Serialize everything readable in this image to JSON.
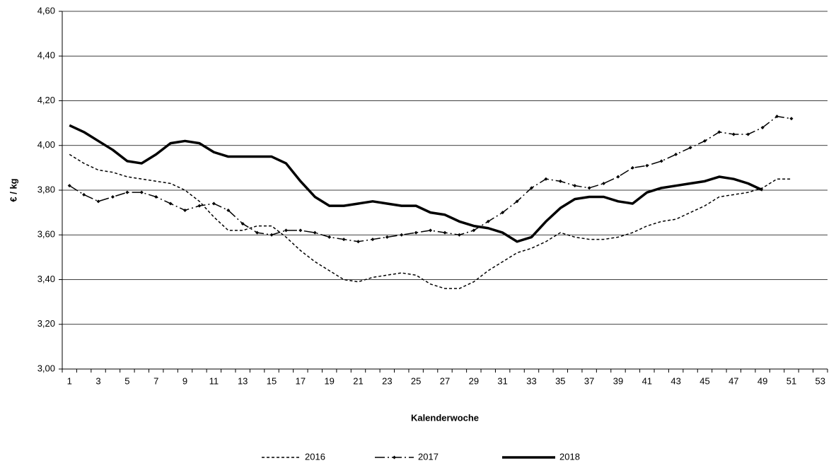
{
  "chart_data": {
    "type": "line",
    "x_label": "Kalenderwoche",
    "y_label": "€ / kg",
    "categories": [
      "1",
      null,
      "3",
      null,
      "5",
      null,
      "7",
      null,
      "9",
      null,
      "11",
      null,
      "13",
      null,
      "15",
      null,
      "17",
      null,
      "19",
      null,
      "21",
      null,
      "23",
      null,
      "25",
      null,
      "27",
      null,
      "29",
      null,
      "31",
      null,
      "33",
      null,
      "35",
      null,
      "37",
      null,
      "39",
      null,
      "41",
      null,
      "43",
      null,
      "45",
      null,
      "47",
      null,
      "49",
      null,
      "51",
      null,
      "53"
    ],
    "series": [
      {
        "name": "2016",
        "color": "#000000",
        "style": "dashed",
        "values": [
          3.96,
          3.92,
          3.89,
          3.88,
          3.86,
          3.85,
          3.84,
          3.83,
          3.8,
          3.75,
          3.68,
          3.62,
          3.62,
          3.64,
          3.64,
          3.59,
          3.53,
          3.48,
          3.44,
          3.4,
          3.39,
          3.41,
          3.42,
          3.43,
          3.42,
          3.38,
          3.36,
          3.36,
          3.39,
          3.44,
          3.48,
          3.52,
          3.54,
          3.57,
          3.61,
          3.59,
          3.58,
          3.58,
          3.59,
          3.61,
          3.64,
          3.66,
          3.67,
          3.7,
          3.73,
          3.77,
          3.78,
          3.79,
          3.81,
          3.85,
          3.85,
          null,
          null
        ]
      },
      {
        "name": "2017",
        "color": "#000000",
        "style": "dashdot",
        "values": [
          3.82,
          3.78,
          3.75,
          3.77,
          3.79,
          3.79,
          3.77,
          3.74,
          3.71,
          3.73,
          3.74,
          3.71,
          3.65,
          3.61,
          3.6,
          3.62,
          3.62,
          3.61,
          3.59,
          3.58,
          3.57,
          3.58,
          3.59,
          3.6,
          3.61,
          3.62,
          3.61,
          3.6,
          3.62,
          3.66,
          3.7,
          3.75,
          3.81,
          3.85,
          3.84,
          3.82,
          3.81,
          3.83,
          3.86,
          3.9,
          3.91,
          3.93,
          3.96,
          3.99,
          4.02,
          4.06,
          4.05,
          4.05,
          4.08,
          4.13,
          4.12,
          null,
          null
        ]
      },
      {
        "name": "2018",
        "color": "#000000",
        "style": "solid",
        "values": [
          4.09,
          4.06,
          4.02,
          3.98,
          3.93,
          3.92,
          3.96,
          4.01,
          4.02,
          4.01,
          3.97,
          3.95,
          3.95,
          3.95,
          3.95,
          3.92,
          3.84,
          3.77,
          3.73,
          3.73,
          3.74,
          3.75,
          3.74,
          3.73,
          3.73,
          3.7,
          3.69,
          3.66,
          3.64,
          3.63,
          3.61,
          3.57,
          3.59,
          3.66,
          3.72,
          3.76,
          3.77,
          3.77,
          3.75,
          3.74,
          3.79,
          3.81,
          3.82,
          3.83,
          3.84,
          3.86,
          3.85,
          3.83,
          3.8,
          null,
          null,
          null,
          null
        ]
      }
    ],
    "ylim": [
      3.0,
      4.6
    ],
    "yticks": [
      {
        "value": 3.0,
        "label": "3,00"
      },
      {
        "value": 3.2,
        "label": "3,20"
      },
      {
        "value": 3.4,
        "label": "3,40"
      },
      {
        "value": 3.6,
        "label": "3,60"
      },
      {
        "value": 3.8,
        "label": "3,80"
      },
      {
        "value": 4.0,
        "label": "4,00"
      },
      {
        "value": 4.2,
        "label": "4,20"
      },
      {
        "value": 4.4,
        "label": "4,40"
      },
      {
        "value": 4.6,
        "label": "4,60"
      }
    ],
    "grid": true,
    "legend": "bottom"
  }
}
